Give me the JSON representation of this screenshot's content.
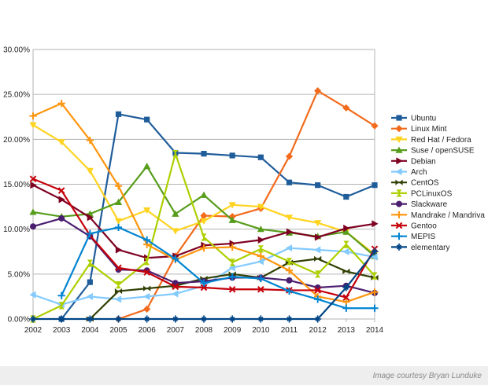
{
  "chart_data": {
    "type": "line",
    "title": "",
    "xlabel": "",
    "ylabel": "",
    "x": [
      2002,
      2003,
      2004,
      2005,
      2006,
      2007,
      2008,
      2009,
      2010,
      2011,
      2012,
      2013,
      2014
    ],
    "ylim": [
      0,
      30
    ],
    "yticks": [
      0,
      5,
      10,
      15,
      20,
      25,
      30
    ],
    "ytick_labels": [
      "0.00%",
      "5.00%",
      "10.00%",
      "15.00%",
      "20.00%",
      "25.00%",
      "30.00%"
    ],
    "grid": "horizontal",
    "legend_position": "right",
    "series": [
      {
        "name": "Ubuntu",
        "color": "#1f5c9a",
        "marker": "square",
        "values": [
          null,
          0,
          4.1,
          22.8,
          22.2,
          18.5,
          18.4,
          18.2,
          18.0,
          15.2,
          14.9,
          13.6,
          14.9
        ]
      },
      {
        "name": "Linux Mint",
        "color": "#f26b1d",
        "marker": "diamond",
        "values": [
          null,
          null,
          null,
          0,
          1.1,
          7.0,
          11.5,
          11.4,
          12.3,
          18.1,
          25.4,
          23.5,
          21.5
        ]
      },
      {
        "name": "Red Hat / Fedora",
        "color": "#ffd320",
        "marker": "triangle-down",
        "values": [
          21.6,
          19.7,
          16.5,
          10.9,
          12.1,
          9.8,
          10.9,
          12.7,
          12.5,
          11.3,
          10.7,
          9.7,
          7.2
        ]
      },
      {
        "name": "Suse / openSUSE",
        "color": "#579d1c",
        "marker": "triangle-up",
        "values": [
          11.9,
          11.4,
          11.7,
          13.0,
          17.0,
          11.7,
          13.8,
          11.0,
          10.0,
          9.6,
          9.2,
          9.7,
          7.0
        ]
      },
      {
        "name": "Debian",
        "color": "#7e0021",
        "marker": "triangle-right",
        "values": [
          14.9,
          13.3,
          11.3,
          7.7,
          6.8,
          7.0,
          8.2,
          8.4,
          8.8,
          9.7,
          9.1,
          10.1,
          10.6
        ]
      },
      {
        "name": "Arch",
        "color": "#83caff",
        "marker": "triangle-left",
        "values": [
          2.7,
          1.6,
          2.5,
          2.2,
          2.5,
          2.8,
          3.7,
          5.7,
          6.4,
          7.9,
          7.7,
          7.5,
          6.9
        ]
      },
      {
        "name": "CentOS",
        "color": "#314004",
        "marker": "bowtie",
        "values": [
          null,
          null,
          0,
          3.1,
          3.4,
          3.7,
          4.5,
          5.0,
          4.6,
          6.3,
          6.7,
          5.3,
          4.6
        ]
      },
      {
        "name": "PCLinuxOS",
        "color": "#aecf00",
        "marker": "hourglass",
        "values": [
          0,
          1.5,
          6.2,
          3.8,
          6.4,
          18.4,
          9.1,
          6.3,
          7.8,
          6.4,
          5.0,
          8.3,
          4.8
        ]
      },
      {
        "name": "Slackware",
        "color": "#4b1f6f",
        "marker": "circle",
        "values": [
          10.3,
          11.2,
          9.2,
          5.5,
          5.4,
          4.0,
          4.2,
          4.6,
          4.6,
          4.3,
          3.5,
          3.7,
          2.9
        ]
      },
      {
        "name": "Mandrake / Mandriva",
        "color": "#ff950e",
        "marker": "plus",
        "values": [
          22.6,
          24.0,
          19.9,
          14.8,
          8.3,
          6.6,
          7.9,
          8.0,
          7.0,
          5.4,
          2.5,
          1.9,
          3.0
        ]
      },
      {
        "name": "Gentoo",
        "color": "#c5000b",
        "marker": "x",
        "values": [
          15.6,
          14.3,
          9.3,
          5.7,
          5.2,
          3.6,
          3.5,
          3.3,
          3.3,
          3.2,
          3.2,
          2.4,
          7.8
        ]
      },
      {
        "name": "MEPIS",
        "color": "#0084d1",
        "marker": "plus",
        "values": [
          null,
          2.6,
          9.5,
          10.2,
          8.8,
          6.7,
          4.0,
          4.7,
          4.5,
          3.1,
          2.2,
          1.2,
          1.2
        ]
      },
      {
        "name": "elementary",
        "color": "#004586",
        "marker": "star",
        "values": [
          0,
          0,
          0,
          0,
          0,
          0,
          0,
          0,
          0,
          0,
          0,
          3.5,
          7.5
        ]
      }
    ]
  },
  "caption": "Image courtesy Bryan Lunduke"
}
